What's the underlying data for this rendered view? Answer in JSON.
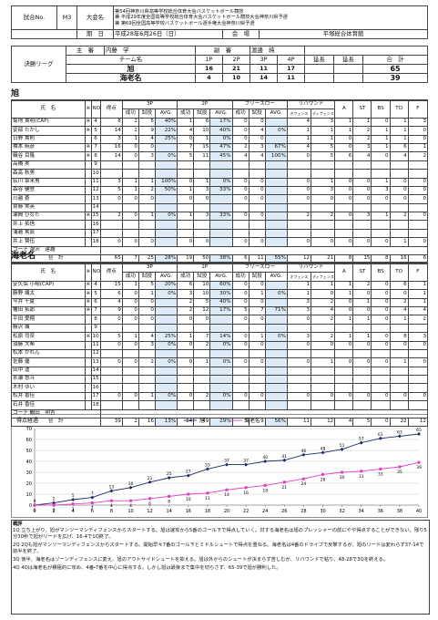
{
  "header": {
    "match_no_label": "試合No.",
    "match_no": "M3",
    "tournament_label": "大会名",
    "tournament": [
      "第54回神奈川県高等学校総合体育大会バスケットボール競技",
      "兼 平成29年度全国高等学校総合体育大会バスケットボール競技大会神奈川県予選",
      "兼 第69回全国高等学校バスケットボール選手権大会神奈川県予選"
    ],
    "date_label": "期　日",
    "date": "平成28年6月26日（日）",
    "venue_label": "会　場",
    "venue": "平塚総合体育館",
    "round": "決勝リーグ",
    "referee_label": "主　審",
    "referee": "内藤　学",
    "umpire_label": "副　審",
    "umpire": "渡邊　純",
    "score_header": [
      "チーム名",
      "1P",
      "2P",
      "3P",
      "4P",
      "延長",
      "延長",
      "合　計"
    ],
    "scores": [
      {
        "team": "旭",
        "periods": [
          16,
          21,
          11,
          17
        ],
        "total": 65
      },
      {
        "team": "海老名",
        "periods": [
          4,
          10,
          14,
          11
        ],
        "total": 39
      }
    ]
  },
  "stat_columns": [
    "氏　名",
    "※",
    "NO",
    "得点",
    "3P",
    "2P",
    "フリースロー",
    "リバウンド",
    "A",
    "ST",
    "BS",
    "TO",
    "F"
  ],
  "stat_sub_columns": [
    "成功",
    "試投",
    "AVG.",
    "成功",
    "試投",
    "AVG.",
    "成功",
    "試投",
    "AVG.",
    "オフェンス",
    "ディフェンス"
  ],
  "coach_label": "コーチ",
  "total_label": "合　計",
  "teams": [
    {
      "name": "旭",
      "coach": "瀧沢　達雄",
      "players": [
        {
          "name": "菊地 貴明(CAP)",
          "mark": "※",
          "no": 4,
          "stats": [
            8,
            2,
            5,
            "40%",
            1,
            6,
            "17%",
            0,
            0,
            null,
            4,
            3,
            1,
            1,
            0,
            1,
            3
          ]
        },
        {
          "name": "安部 たかし",
          "mark": "※",
          "no": 5,
          "stats": [
            14,
            2,
            9,
            "22%",
            4,
            10,
            "40%",
            0,
            4,
            "0%",
            1,
            1,
            1,
            2,
            1,
            1,
            0
          ]
        },
        {
          "name": "日野 貴則",
          "mark": null,
          "no": 6,
          "stats": [
            3,
            1,
            4,
            "25%",
            0,
            1,
            "0%",
            0,
            0,
            null,
            1,
            1,
            0,
            2,
            1,
            1,
            0
          ]
        },
        {
          "name": "橋本 暁彦",
          "mark": "※",
          "no": 7,
          "stats": [
            16,
            0,
            0,
            null,
            7,
            15,
            "47%",
            2,
            3,
            "67%",
            4,
            5,
            0,
            3,
            1,
            6,
            1
          ]
        },
        {
          "name": "織谷 目隆",
          "mark": "※",
          "no": 8,
          "stats": [
            14,
            0,
            3,
            "0%",
            5,
            11,
            "45%",
            4,
            4,
            "100%",
            0,
            5,
            6,
            4,
            0,
            4,
            2
          ]
        },
        {
          "name": "高橋 実",
          "mark": null,
          "no": 9,
          "stats": [
            null,
            null,
            null,
            null,
            null,
            null,
            null,
            null,
            null,
            null,
            null,
            null,
            null,
            null,
            null,
            null,
            null
          ]
        },
        {
          "name": "森高 秋男",
          "mark": null,
          "no": 10,
          "stats": [
            null,
            null,
            null,
            null,
            null,
            null,
            null,
            null,
            null,
            null,
            null,
            null,
            null,
            null,
            null,
            null,
            null
          ]
        },
        {
          "name": "荻川 章来男",
          "mark": null,
          "no": 11,
          "stats": [
            3,
            1,
            1,
            "100%",
            0,
            1,
            "0%",
            0,
            0,
            null,
            0,
            1,
            0,
            0,
            1,
            0,
            0
          ]
        },
        {
          "name": "森谷 健登",
          "mark": null,
          "no": 12,
          "stats": [
            5,
            1,
            2,
            "50%",
            1,
            3,
            "33%",
            0,
            0,
            null,
            0,
            3,
            0,
            0,
            3,
            0,
            0
          ]
        },
        {
          "name": "川越 蒼",
          "mark": null,
          "no": 13,
          "stats": [
            0,
            0,
            0,
            null,
            0,
            0,
            null,
            0,
            0,
            null,
            0,
            0,
            0,
            0,
            0,
            0,
            0
          ]
        },
        {
          "name": "齋藤 実英",
          "mark": null,
          "no": 14,
          "stats": [
            null,
            null,
            null,
            null,
            null,
            null,
            null,
            null,
            null,
            null,
            null,
            null,
            null,
            null,
            null,
            null,
            null
          ]
        },
        {
          "name": "瀬間 ひなた",
          "mark": "※",
          "no": 15,
          "stats": [
            2,
            0,
            1,
            "0%",
            1,
            3,
            "33%",
            0,
            0,
            null,
            2,
            2,
            0,
            3,
            1,
            2,
            0
          ]
        },
        {
          "name": "井上 拓信",
          "mark": null,
          "no": 16,
          "stats": [
            null,
            null,
            null,
            null,
            null,
            null,
            null,
            null,
            null,
            null,
            null,
            null,
            null,
            null,
            null,
            null,
            null
          ]
        },
        {
          "name": "浦越 篤辰",
          "mark": null,
          "no": 17,
          "stats": [
            null,
            null,
            null,
            null,
            null,
            null,
            null,
            null,
            null,
            null,
            null,
            null,
            null,
            null,
            null,
            null,
            null
          ]
        },
        {
          "name": "井上 賢伍",
          "mark": null,
          "no": 18,
          "stats": [
            0,
            0,
            0,
            null,
            0,
            0,
            null,
            0,
            0,
            null,
            0,
            0,
            0,
            0,
            0,
            1,
            0
          ]
        }
      ],
      "total": [
        65,
        7,
        25,
        "28%",
        19,
        50,
        "38%",
        6,
        11,
        "55%",
        12,
        21,
        8,
        15,
        8,
        16,
        6
      ]
    },
    {
      "name": "海老名",
      "coach": "鶴田　明吉",
      "players": [
        {
          "name": "安久保 小翔(CAP)",
          "mark": "※",
          "no": 4,
          "stats": [
            15,
            1,
            5,
            "20%",
            6,
            10,
            "60%",
            0,
            0,
            null,
            1,
            1,
            1,
            2,
            0,
            6,
            1
          ]
        },
        {
          "name": "藤野 颯太",
          "mark": "※",
          "no": 5,
          "stats": [
            6,
            0,
            1,
            "0%",
            3,
            10,
            "30%",
            0,
            1,
            "0%",
            1,
            0,
            1,
            0,
            0,
            0,
            1
          ]
        },
        {
          "name": "今井 千夏",
          "mark": "※",
          "no": 6,
          "stats": [
            4,
            0,
            0,
            null,
            2,
            5,
            "40%",
            0,
            0,
            null,
            3,
            2,
            0,
            1,
            0,
            2,
            1
          ]
        },
        {
          "name": "幡田 拓郎",
          "mark": "※",
          "no": 7,
          "stats": [
            9,
            0,
            0,
            null,
            2,
            12,
            "17%",
            5,
            7,
            "71%",
            3,
            4,
            0,
            0,
            0,
            4,
            4
          ]
        },
        {
          "name": "平田 愛翔",
          "mark": null,
          "no": 8,
          "stats": [
            0,
            0,
            0,
            null,
            0,
            0,
            null,
            0,
            0,
            null,
            0,
            2,
            1,
            1,
            0,
            1,
            2
          ]
        },
        {
          "name": "藤沢 颯",
          "mark": null,
          "no": 9,
          "stats": [
            null,
            null,
            null,
            null,
            null,
            null,
            null,
            null,
            null,
            null,
            null,
            null,
            null,
            null,
            null,
            null,
            null
          ]
        },
        {
          "name": "松原 司奈",
          "mark": "※",
          "no": 10,
          "stats": [
            5,
            1,
            4,
            "25%",
            1,
            7,
            "14%",
            0,
            1,
            "0%",
            3,
            2,
            1,
            1,
            0,
            8,
            3
          ]
        },
        {
          "name": "須藤 大希",
          "mark": null,
          "no": 11,
          "stats": [
            0,
            0,
            3,
            "0%",
            0,
            2,
            "0%",
            0,
            0,
            null,
            0,
            0,
            0,
            0,
            0,
            0,
            0
          ]
        },
        {
          "name": "松本 かれん",
          "mark": null,
          "no": 12,
          "stats": [
            null,
            null,
            null,
            null,
            null,
            null,
            null,
            null,
            null,
            null,
            null,
            null,
            null,
            null,
            null,
            null,
            null
          ]
        },
        {
          "name": "佐藤 優",
          "mark": null,
          "no": 13,
          "stats": [
            0,
            0,
            2,
            "0%",
            0,
            1,
            "0%",
            0,
            0,
            null,
            0,
            1,
            0,
            0,
            0,
            1,
            0
          ]
        },
        {
          "name": "田中 遥",
          "mark": null,
          "no": 14,
          "stats": [
            null,
            null,
            null,
            null,
            null,
            null,
            null,
            null,
            null,
            null,
            null,
            null,
            null,
            null,
            null,
            null,
            null
          ]
        },
        {
          "name": "永瀬 悠斗",
          "mark": null,
          "no": 15,
          "stats": [
            null,
            null,
            null,
            null,
            null,
            null,
            null,
            null,
            null,
            null,
            null,
            null,
            null,
            null,
            null,
            null,
            null
          ]
        },
        {
          "name": "木村 ゆい",
          "mark": null,
          "no": 16,
          "stats": [
            null,
            null,
            null,
            null,
            null,
            null,
            null,
            null,
            null,
            null,
            null,
            null,
            null,
            null,
            null,
            null,
            null
          ]
        },
        {
          "name": "松井 香佳",
          "mark": null,
          "no": 17,
          "stats": [
            0,
            0,
            1,
            "0%",
            0,
            2,
            "0%",
            0,
            0,
            null,
            0,
            0,
            0,
            0,
            0,
            0,
            0
          ]
        },
        {
          "name": "石井 香佳",
          "mark": null,
          "no": 18,
          "stats": [
            null,
            null,
            null,
            null,
            null,
            null,
            null,
            null,
            null,
            null,
            null,
            null,
            null,
            null,
            null,
            null,
            null
          ]
        }
      ],
      "total": [
        39,
        2,
        16,
        "13%",
        14,
        49,
        "29%",
        5,
        9,
        "56%",
        11,
        12,
        4,
        5,
        0,
        22,
        12
      ]
    }
  ],
  "chart_data": {
    "type": "line",
    "title": "得点経過",
    "x": [
      0,
      2,
      4,
      6,
      8,
      10,
      12,
      14,
      16,
      18,
      20,
      22,
      24,
      26,
      28,
      30,
      32,
      34,
      36,
      38,
      40
    ],
    "xlim": [
      0,
      40
    ],
    "xticks": [
      0,
      2,
      4,
      6,
      8,
      10,
      12,
      14,
      16,
      18,
      20,
      22,
      24,
      26,
      28,
      30,
      32,
      34,
      36,
      38,
      40
    ],
    "ylim": [
      0,
      70
    ],
    "yticks": [
      0,
      10,
      20,
      30,
      40,
      50,
      60,
      70
    ],
    "grid": true,
    "series": [
      {
        "name": "旭",
        "color": "#1f2a6b",
        "marker": "diamond",
        "values": [
          0,
          2,
          5,
          7,
          13,
          16,
          21,
          25,
          27,
          33,
          37,
          37,
          40,
          41,
          46,
          48,
          51,
          57,
          61,
          63,
          65
        ]
      },
      {
        "name": "海老名",
        "color": "#e040c0",
        "marker": "square",
        "values": [
          0,
          0,
          1,
          2,
          4,
          4,
          6,
          8,
          10,
          11,
          14,
          16,
          18,
          21,
          24,
          28,
          30,
          31,
          33,
          35,
          39
        ]
      }
    ]
  },
  "commentary": {
    "title": "概評",
    "paragraphs": [
      "1Q 立ち上がり、旭がマンツーマンディフェンスからスタートする。旭は速攻から5番のゴール下で得点していく。対する海老名は旭のプレッシャーの前にやや得点することができない。残り5分30秒で旭がリードを広げ、16-4で1Q終了。",
      "2Q 2Qも旭がマンツーマンディフェンスからスタートする。開始早々7番のゴール下とミドルシュートで得点を重ねる。海老名は4番のドライブで反撃するが、旭のリードは変わらず37-14で前半を終了。",
      "3Q 後半、海老名はゾーンディフェンスに変え、旭のアウトサイドシュートを抑える。旭は外からのシュートが決まらず苦しむが、リバウンドで粘り、48-28で3Qを終える。",
      "4Q 4Qは海老名が積極的に攻め、4番・7番を中心に得点する。しかし旭は最後まで集中を切らさず、65-39で旭が勝利した。"
    ]
  }
}
